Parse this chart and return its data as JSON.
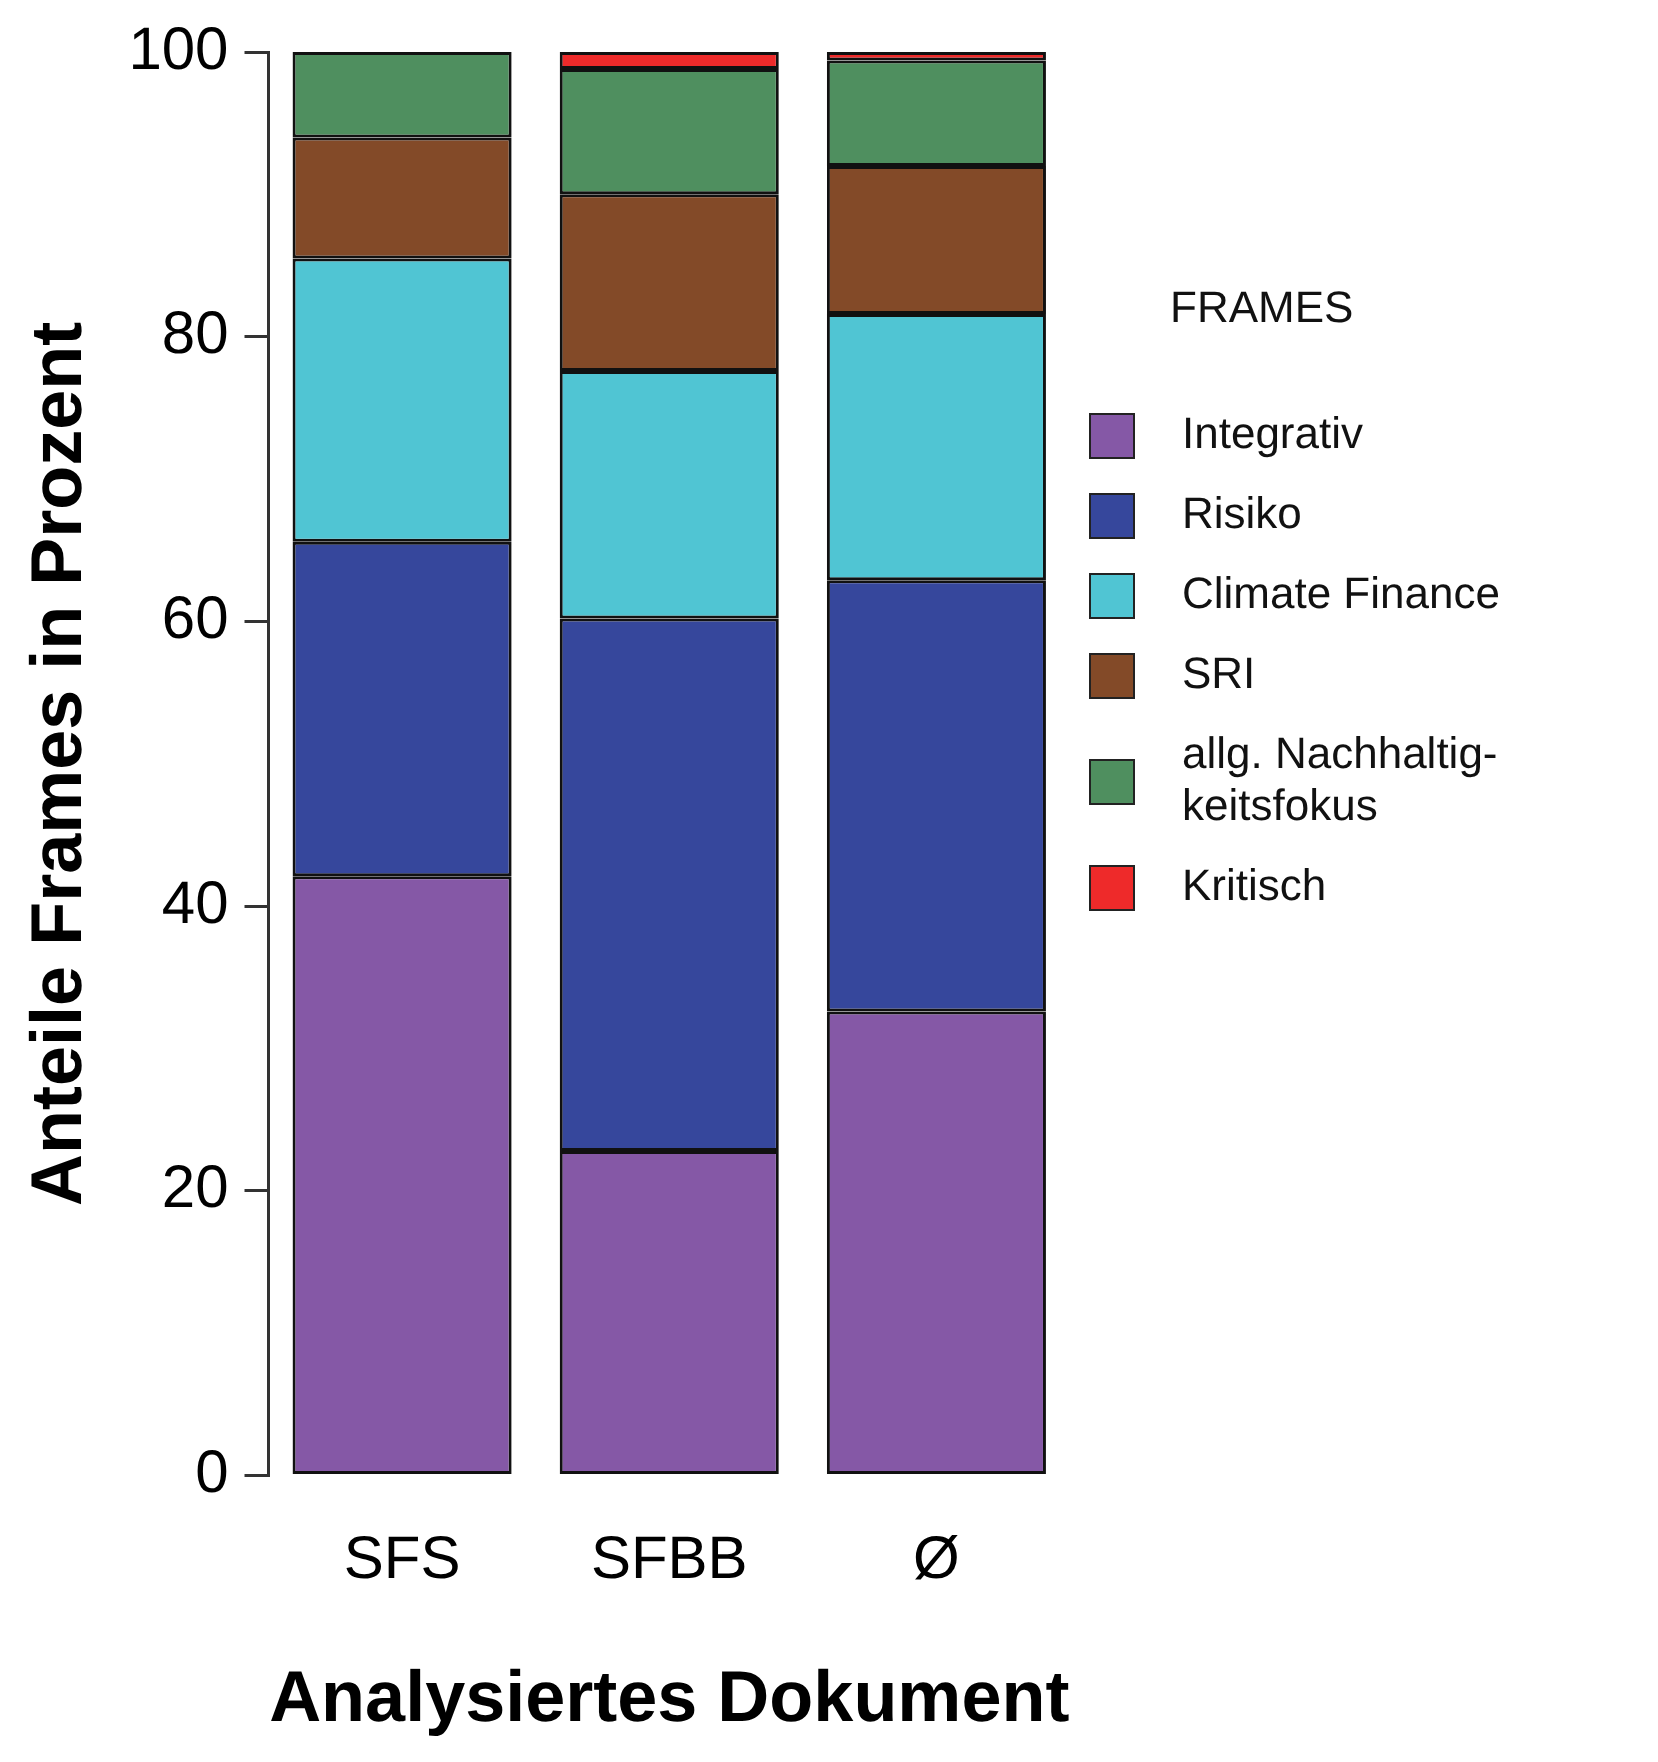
{
  "chart_data": {
    "type": "bar",
    "stacked": true,
    "xlabel": "Analysiertes Dokument",
    "ylabel": "Anteile Frames in Prozent",
    "legend_title": "FRAMES",
    "legend": "right",
    "categories": [
      "SFS",
      "SFBB",
      "Ø"
    ],
    "ylim": [
      0,
      100
    ],
    "yticks": [
      0,
      20,
      40,
      60,
      80,
      100
    ],
    "grid": false,
    "series": [
      {
        "name": "Integrativ",
        "color": "#8558a6",
        "values": [
          42.1,
          22.8,
          32.6
        ]
      },
      {
        "name": "Risiko",
        "color": "#36479c",
        "values": [
          23.5,
          37.4,
          30.3
        ]
      },
      {
        "name": "Climate Finance",
        "color": "#50c5d3",
        "values": [
          19.9,
          17.4,
          18.7
        ]
      },
      {
        "name": "SRI",
        "color": "#834a28",
        "values": [
          8.5,
          12.4,
          10.4
        ]
      },
      {
        "name": "allg. Nachhaltig-\nkeitsfokus",
        "color": "#4f8f5f",
        "values": [
          6.0,
          8.8,
          7.4
        ]
      },
      {
        "name": "Kritisch",
        "color": "#ee2a2a",
        "values": [
          0,
          1.2,
          0.6
        ]
      }
    ]
  }
}
